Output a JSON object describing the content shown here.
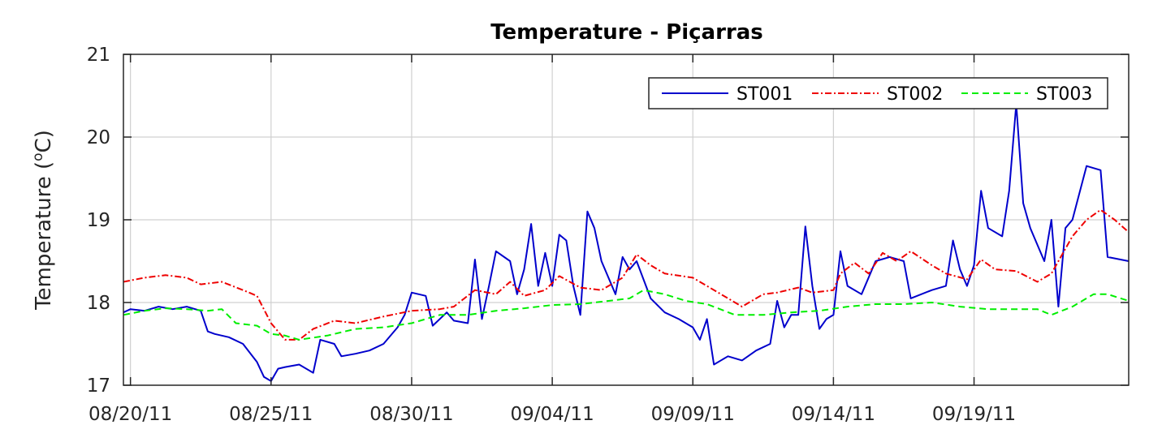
{
  "chart_data": {
    "type": "line",
    "title": "Temperature - Piçarras",
    "ylabel_main": "Temperature (",
    "ylabel_sup": "o",
    "ylabel_unit": "C)",
    "xlabel": "",
    "xlim": [
      "2011-08-19T18:00",
      "2011-09-24T12:00"
    ],
    "ylim": [
      17,
      21
    ],
    "xticks": [
      "08/20/11",
      "08/25/11",
      "08/30/11",
      "09/04/11",
      "09/09/11",
      "09/14/11",
      "09/19/11"
    ],
    "xtick_dates": [
      "2011-08-20",
      "2011-08-25",
      "2011-08-30",
      "2011-09-04",
      "2011-09-09",
      "2011-09-14",
      "2011-09-19"
    ],
    "yticks": [
      17,
      18,
      19,
      20,
      21
    ],
    "grid": true,
    "legend_position": "top-right",
    "legend_orientation": "horizontal",
    "series": [
      {
        "name": "ST001",
        "color": "#0000cc",
        "style": "solid",
        "points": [
          [
            "2011-08-19T18:00",
            17.88
          ],
          [
            "2011-08-20T00:00",
            17.92
          ],
          [
            "2011-08-20T12:00",
            17.9
          ],
          [
            "2011-08-21T00:00",
            17.95
          ],
          [
            "2011-08-21T12:00",
            17.92
          ],
          [
            "2011-08-22T00:00",
            17.95
          ],
          [
            "2011-08-22T12:00",
            17.9
          ],
          [
            "2011-08-22T18:00",
            17.65
          ],
          [
            "2011-08-23T00:00",
            17.62
          ],
          [
            "2011-08-23T12:00",
            17.58
          ],
          [
            "2011-08-24T00:00",
            17.5
          ],
          [
            "2011-08-24T12:00",
            17.28
          ],
          [
            "2011-08-24T18:00",
            17.1
          ],
          [
            "2011-08-25T00:00",
            17.05
          ],
          [
            "2011-08-25T06:00",
            17.2
          ],
          [
            "2011-08-25T12:00",
            17.22
          ],
          [
            "2011-08-26T00:00",
            17.25
          ],
          [
            "2011-08-26T12:00",
            17.15
          ],
          [
            "2011-08-26T18:00",
            17.55
          ],
          [
            "2011-08-27T06:00",
            17.5
          ],
          [
            "2011-08-27T12:00",
            17.35
          ],
          [
            "2011-08-28T00:00",
            17.38
          ],
          [
            "2011-08-28T12:00",
            17.42
          ],
          [
            "2011-08-29T00:00",
            17.5
          ],
          [
            "2011-08-29T12:00",
            17.7
          ],
          [
            "2011-08-29T18:00",
            17.85
          ],
          [
            "2011-08-30T00:00",
            18.12
          ],
          [
            "2011-08-30T12:00",
            18.08
          ],
          [
            "2011-08-30T18:00",
            17.72
          ],
          [
            "2011-08-31T06:00",
            17.88
          ],
          [
            "2011-08-31T12:00",
            17.78
          ],
          [
            "2011-09-01T00:00",
            17.75
          ],
          [
            "2011-09-01T06:00",
            18.52
          ],
          [
            "2011-09-01T12:00",
            17.8
          ],
          [
            "2011-09-01T18:00",
            18.2
          ],
          [
            "2011-09-02T00:00",
            18.62
          ],
          [
            "2011-09-02T12:00",
            18.5
          ],
          [
            "2011-09-02T18:00",
            18.1
          ],
          [
            "2011-09-03T00:00",
            18.4
          ],
          [
            "2011-09-03T06:00",
            18.95
          ],
          [
            "2011-09-03T12:00",
            18.2
          ],
          [
            "2011-09-03T18:00",
            18.6
          ],
          [
            "2011-09-04T00:00",
            18.2
          ],
          [
            "2011-09-04T06:00",
            18.82
          ],
          [
            "2011-09-04T12:00",
            18.75
          ],
          [
            "2011-09-04T18:00",
            18.2
          ],
          [
            "2011-09-05T00:00",
            17.85
          ],
          [
            "2011-09-05T06:00",
            19.1
          ],
          [
            "2011-09-05T12:00",
            18.9
          ],
          [
            "2011-09-05T18:00",
            18.5
          ],
          [
            "2011-09-06T06:00",
            18.1
          ],
          [
            "2011-09-06T12:00",
            18.55
          ],
          [
            "2011-09-06T18:00",
            18.4
          ],
          [
            "2011-09-07T00:00",
            18.5
          ],
          [
            "2011-09-07T12:00",
            18.05
          ],
          [
            "2011-09-08T00:00",
            17.88
          ],
          [
            "2011-09-08T12:00",
            17.8
          ],
          [
            "2011-09-09T00:00",
            17.7
          ],
          [
            "2011-09-09T06:00",
            17.55
          ],
          [
            "2011-09-09T12:00",
            17.8
          ],
          [
            "2011-09-09T18:00",
            17.25
          ],
          [
            "2011-09-10T06:00",
            17.35
          ],
          [
            "2011-09-10T18:00",
            17.3
          ],
          [
            "2011-09-11T06:00",
            17.42
          ],
          [
            "2011-09-11T18:00",
            17.5
          ],
          [
            "2011-09-12T00:00",
            18.02
          ],
          [
            "2011-09-12T06:00",
            17.7
          ],
          [
            "2011-09-12T12:00",
            17.85
          ],
          [
            "2011-09-12T18:00",
            17.85
          ],
          [
            "2011-09-13T00:00",
            18.92
          ],
          [
            "2011-09-13T06:00",
            18.2
          ],
          [
            "2011-09-13T12:00",
            17.68
          ],
          [
            "2011-09-13T18:00",
            17.8
          ],
          [
            "2011-09-14T00:00",
            17.85
          ],
          [
            "2011-09-14T06:00",
            18.62
          ],
          [
            "2011-09-14T12:00",
            18.2
          ],
          [
            "2011-09-15T00:00",
            18.1
          ],
          [
            "2011-09-15T12:00",
            18.5
          ],
          [
            "2011-09-16T00:00",
            18.55
          ],
          [
            "2011-09-16T12:00",
            18.5
          ],
          [
            "2011-09-16T18:00",
            18.05
          ],
          [
            "2011-09-17T12:00",
            18.15
          ],
          [
            "2011-09-18T00:00",
            18.2
          ],
          [
            "2011-09-18T06:00",
            18.75
          ],
          [
            "2011-09-18T12:00",
            18.4
          ],
          [
            "2011-09-18T18:00",
            18.2
          ],
          [
            "2011-09-19T00:00",
            18.45
          ],
          [
            "2011-09-19T06:00",
            19.35
          ],
          [
            "2011-09-19T12:00",
            18.9
          ],
          [
            "2011-09-20T00:00",
            18.8
          ],
          [
            "2011-09-20T06:00",
            19.35
          ],
          [
            "2011-09-20T12:00",
            20.4
          ],
          [
            "2011-09-20T18:00",
            19.2
          ],
          [
            "2011-09-21T00:00",
            18.9
          ],
          [
            "2011-09-21T12:00",
            18.5
          ],
          [
            "2011-09-21T18:00",
            19.0
          ],
          [
            "2011-09-22T00:00",
            17.95
          ],
          [
            "2011-09-22T06:00",
            18.9
          ],
          [
            "2011-09-22T12:00",
            19.0
          ],
          [
            "2011-09-23T00:00",
            19.65
          ],
          [
            "2011-09-23T12:00",
            19.6
          ],
          [
            "2011-09-23T18:00",
            18.55
          ],
          [
            "2011-09-24T12:00",
            18.5
          ]
        ]
      },
      {
        "name": "ST002",
        "color": "#ee0000",
        "style": "dashdot",
        "points": [
          [
            "2011-08-19T18:00",
            18.25
          ],
          [
            "2011-08-20T12:00",
            18.3
          ],
          [
            "2011-08-21T06:00",
            18.33
          ],
          [
            "2011-08-22T00:00",
            18.3
          ],
          [
            "2011-08-22T12:00",
            18.22
          ],
          [
            "2011-08-23T06:00",
            18.25
          ],
          [
            "2011-08-24T00:00",
            18.15
          ],
          [
            "2011-08-24T12:00",
            18.08
          ],
          [
            "2011-08-25T00:00",
            17.75
          ],
          [
            "2011-08-25T12:00",
            17.55
          ],
          [
            "2011-08-26T00:00",
            17.55
          ],
          [
            "2011-08-26T12:00",
            17.68
          ],
          [
            "2011-08-27T06:00",
            17.78
          ],
          [
            "2011-08-28T00:00",
            17.75
          ],
          [
            "2011-08-29T00:00",
            17.83
          ],
          [
            "2011-08-30T00:00",
            17.9
          ],
          [
            "2011-08-31T00:00",
            17.92
          ],
          [
            "2011-08-31T12:00",
            17.95
          ],
          [
            "2011-09-01T06:00",
            18.15
          ],
          [
            "2011-09-02T00:00",
            18.1
          ],
          [
            "2011-09-02T12:00",
            18.25
          ],
          [
            "2011-09-03T00:00",
            18.08
          ],
          [
            "2011-09-03T18:00",
            18.15
          ],
          [
            "2011-09-04T06:00",
            18.32
          ],
          [
            "2011-09-05T00:00",
            18.18
          ],
          [
            "2011-09-05T18:00",
            18.15
          ],
          [
            "2011-09-06T12:00",
            18.3
          ],
          [
            "2011-09-07T00:00",
            18.58
          ],
          [
            "2011-09-07T12:00",
            18.45
          ],
          [
            "2011-09-08T00:00",
            18.35
          ],
          [
            "2011-09-09T00:00",
            18.3
          ],
          [
            "2011-09-09T12:00",
            18.2
          ],
          [
            "2011-09-10T00:00",
            18.1
          ],
          [
            "2011-09-10T18:00",
            17.95
          ],
          [
            "2011-09-11T12:00",
            18.1
          ],
          [
            "2011-09-12T00:00",
            18.12
          ],
          [
            "2011-09-12T18:00",
            18.18
          ],
          [
            "2011-09-13T06:00",
            18.12
          ],
          [
            "2011-09-14T00:00",
            18.15
          ],
          [
            "2011-09-14T06:00",
            18.35
          ],
          [
            "2011-09-14T18:00",
            18.48
          ],
          [
            "2011-09-15T06:00",
            18.35
          ],
          [
            "2011-09-15T18:00",
            18.6
          ],
          [
            "2011-09-16T06:00",
            18.5
          ],
          [
            "2011-09-16T18:00",
            18.62
          ],
          [
            "2011-09-17T12:00",
            18.45
          ],
          [
            "2011-09-18T00:00",
            18.35
          ],
          [
            "2011-09-18T18:00",
            18.28
          ],
          [
            "2011-09-19T06:00",
            18.52
          ],
          [
            "2011-09-19T18:00",
            18.4
          ],
          [
            "2011-09-20T12:00",
            18.38
          ],
          [
            "2011-09-21T06:00",
            18.25
          ],
          [
            "2011-09-21T18:00",
            18.35
          ],
          [
            "2011-09-22T12:00",
            18.8
          ],
          [
            "2011-09-23T00:00",
            19.0
          ],
          [
            "2011-09-23T12:00",
            19.12
          ],
          [
            "2011-09-24T00:00",
            19.0
          ],
          [
            "2011-09-24T12:00",
            18.85
          ]
        ]
      },
      {
        "name": "ST003",
        "color": "#00ee00",
        "style": "dashed",
        "points": [
          [
            "2011-08-19T18:00",
            17.85
          ],
          [
            "2011-08-20T12:00",
            17.9
          ],
          [
            "2011-08-21T06:00",
            17.93
          ],
          [
            "2011-08-22T00:00",
            17.92
          ],
          [
            "2011-08-22T18:00",
            17.9
          ],
          [
            "2011-08-23T06:00",
            17.92
          ],
          [
            "2011-08-23T18:00",
            17.75
          ],
          [
            "2011-08-24T12:00",
            17.72
          ],
          [
            "2011-08-25T00:00",
            17.62
          ],
          [
            "2011-08-25T12:00",
            17.6
          ],
          [
            "2011-08-26T00:00",
            17.55
          ],
          [
            "2011-08-27T00:00",
            17.6
          ],
          [
            "2011-08-28T00:00",
            17.68
          ],
          [
            "2011-08-29T00:00",
            17.7
          ],
          [
            "2011-08-30T00:00",
            17.75
          ],
          [
            "2011-08-31T00:00",
            17.85
          ],
          [
            "2011-09-01T00:00",
            17.85
          ],
          [
            "2011-09-02T00:00",
            17.9
          ],
          [
            "2011-09-03T00:00",
            17.93
          ],
          [
            "2011-09-04T00:00",
            17.97
          ],
          [
            "2011-09-05T00:00",
            17.98
          ],
          [
            "2011-09-06T00:00",
            18.02
          ],
          [
            "2011-09-06T18:00",
            18.05
          ],
          [
            "2011-09-07T06:00",
            18.15
          ],
          [
            "2011-09-08T00:00",
            18.1
          ],
          [
            "2011-09-08T18:00",
            18.02
          ],
          [
            "2011-09-09T12:00",
            17.98
          ],
          [
            "2011-09-10T12:00",
            17.85
          ],
          [
            "2011-09-11T12:00",
            17.85
          ],
          [
            "2011-09-12T12:00",
            17.88
          ],
          [
            "2011-09-13T12:00",
            17.9
          ],
          [
            "2011-09-14T12:00",
            17.95
          ],
          [
            "2011-09-15T12:00",
            17.98
          ],
          [
            "2011-09-16T12:00",
            17.98
          ],
          [
            "2011-09-17T12:00",
            18.0
          ],
          [
            "2011-09-18T12:00",
            17.95
          ],
          [
            "2011-09-19T12:00",
            17.92
          ],
          [
            "2011-09-20T12:00",
            17.92
          ],
          [
            "2011-09-21T06:00",
            17.92
          ],
          [
            "2011-09-21T18:00",
            17.85
          ],
          [
            "2011-09-22T12:00",
            17.95
          ],
          [
            "2011-09-23T06:00",
            18.1
          ],
          [
            "2011-09-23T18:00",
            18.1
          ],
          [
            "2011-09-24T12:00",
            18.02
          ]
        ]
      }
    ]
  }
}
